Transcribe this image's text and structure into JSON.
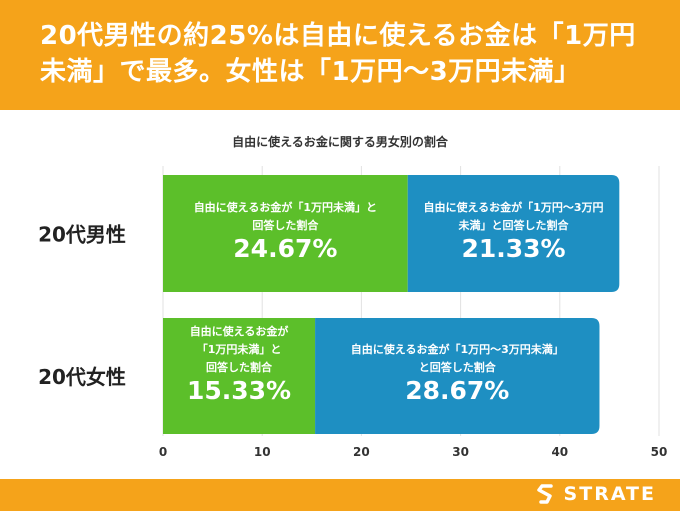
{
  "header": {
    "line1": "20代男性の約25%は自由に使えるお金は「1万円",
    "line2": "未満」で最多。女性は「1万円〜3万円未満」"
  },
  "chart_data": {
    "type": "bar",
    "orientation": "horizontal",
    "stacked": true,
    "title": "自由に使えるお金に関する男女別の割合",
    "categories": [
      "20代男性",
      "20代女性"
    ],
    "series": [
      {
        "name": "自由に使えるお金が「1万円未満」と回答した割合",
        "color": "#5cbf2a",
        "values": [
          24.67,
          15.33
        ],
        "display_values": [
          "24.67%",
          "15.33%"
        ],
        "labels": [
          [
            "自由に使えるお金が「1万円未満」と",
            "回答した割合"
          ],
          [
            "自由に使えるお金が",
            "「1万円未満」と",
            "回答した割合"
          ]
        ]
      },
      {
        "name": "自由に使えるお金が「1万円〜3万円未満」と回答した割合",
        "color": "#1e8fc2",
        "values": [
          21.33,
          28.67
        ],
        "display_values": [
          "21.33%",
          "28.67%"
        ],
        "labels": [
          [
            "自由に使えるお金が「1万円〜3万円",
            "未満」と回答した割合"
          ],
          [
            "自由に使えるお金が「1万円〜3万円未満」",
            "と回答した割合"
          ]
        ]
      }
    ],
    "xlim": [
      0,
      50
    ],
    "xticks": [
      "0",
      "10",
      "20",
      "30",
      "40",
      "50"
    ],
    "grid": true,
    "xlabel": "",
    "ylabel": ""
  },
  "footer": {
    "brand": "STRATE"
  }
}
